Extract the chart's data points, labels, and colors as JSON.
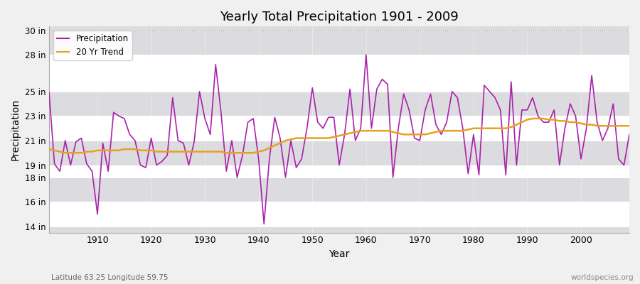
{
  "title": "Yearly Total Precipitation 1901 - 2009",
  "xlabel": "Year",
  "ylabel": "Precipitation",
  "footnote_left": "Latitude 63.25 Longitude 59.75",
  "footnote_right": "worldspecies.org",
  "ylim": [
    13.5,
    30.3
  ],
  "bg_color": "#f0f0f0",
  "plot_bg_color": "#dcdce0",
  "precip_color": "#aa22aa",
  "trend_color": "#e8a020",
  "grid_color": "#ffffff",
  "years": [
    1901,
    1902,
    1903,
    1904,
    1905,
    1906,
    1907,
    1908,
    1909,
    1910,
    1911,
    1912,
    1913,
    1914,
    1915,
    1916,
    1917,
    1918,
    1919,
    1920,
    1921,
    1922,
    1923,
    1924,
    1925,
    1926,
    1927,
    1928,
    1929,
    1930,
    1931,
    1932,
    1933,
    1934,
    1935,
    1936,
    1937,
    1938,
    1939,
    1940,
    1941,
    1942,
    1943,
    1944,
    1945,
    1946,
    1947,
    1948,
    1949,
    1950,
    1951,
    1952,
    1953,
    1954,
    1955,
    1956,
    1957,
    1958,
    1959,
    1960,
    1961,
    1962,
    1963,
    1964,
    1965,
    1966,
    1967,
    1968,
    1969,
    1970,
    1971,
    1972,
    1973,
    1974,
    1975,
    1976,
    1977,
    1978,
    1979,
    1980,
    1981,
    1982,
    1983,
    1984,
    1985,
    1986,
    1987,
    1988,
    1989,
    1990,
    1991,
    1992,
    1993,
    1994,
    1995,
    1996,
    1997,
    1998,
    1999,
    2000,
    2001,
    2002,
    2003,
    2004,
    2005,
    2006,
    2007,
    2008,
    2009
  ],
  "precip": [
    24.9,
    19.1,
    18.5,
    21.0,
    19.0,
    20.9,
    21.2,
    19.1,
    18.5,
    15.0,
    20.8,
    18.5,
    23.3,
    23.0,
    22.8,
    21.5,
    21.0,
    19.0,
    18.8,
    21.2,
    19.0,
    19.3,
    19.8,
    24.5,
    21.0,
    20.8,
    19.0,
    20.9,
    25.0,
    22.8,
    21.5,
    27.2,
    23.3,
    18.5,
    21.0,
    18.0,
    19.8,
    22.5,
    22.8,
    19.5,
    14.2,
    19.5,
    22.9,
    21.2,
    18.0,
    21.0,
    18.8,
    19.5,
    22.0,
    25.3,
    22.5,
    22.0,
    22.9,
    22.9,
    19.0,
    21.5,
    25.2,
    21.0,
    22.0,
    28.0,
    22.0,
    25.2,
    26.0,
    25.6,
    18.0,
    22.0,
    24.8,
    23.5,
    21.2,
    21.0,
    23.5,
    24.8,
    22.3,
    21.5,
    22.5,
    25.0,
    24.5,
    22.0,
    18.3,
    21.5,
    18.2,
    25.5,
    25.0,
    24.5,
    23.5,
    18.2,
    25.8,
    19.0,
    23.5,
    23.5,
    24.5,
    23.0,
    22.5,
    22.5,
    23.5,
    19.0,
    22.0,
    24.0,
    23.0,
    19.5,
    22.0,
    26.3,
    22.5,
    21.0,
    22.0,
    24.0,
    19.5,
    19.0,
    21.5
  ],
  "trend": [
    20.3,
    20.2,
    20.1,
    20.0,
    20.0,
    20.0,
    20.0,
    20.1,
    20.1,
    20.2,
    20.2,
    20.2,
    20.2,
    20.2,
    20.3,
    20.3,
    20.3,
    20.2,
    20.2,
    20.2,
    20.1,
    20.1,
    20.1,
    20.1,
    20.1,
    20.1,
    20.1,
    20.1,
    20.1,
    20.1,
    20.1,
    20.1,
    20.1,
    20.0,
    20.0,
    20.0,
    20.0,
    20.0,
    20.0,
    20.1,
    20.2,
    20.4,
    20.6,
    20.8,
    21.0,
    21.1,
    21.2,
    21.2,
    21.2,
    21.2,
    21.2,
    21.2,
    21.2,
    21.3,
    21.4,
    21.5,
    21.6,
    21.7,
    21.8,
    21.8,
    21.8,
    21.8,
    21.8,
    21.8,
    21.7,
    21.6,
    21.5,
    21.5,
    21.5,
    21.5,
    21.5,
    21.6,
    21.7,
    21.8,
    21.8,
    21.8,
    21.8,
    21.8,
    21.9,
    22.0,
    22.0,
    22.0,
    22.0,
    22.0,
    22.0,
    22.0,
    22.1,
    22.3,
    22.5,
    22.7,
    22.8,
    22.8,
    22.8,
    22.7,
    22.7,
    22.6,
    22.6,
    22.5,
    22.5,
    22.4,
    22.3,
    22.3,
    22.2,
    22.2,
    22.2,
    22.2,
    22.2,
    22.2,
    22.2
  ],
  "ytick_vals": [
    14,
    16,
    18,
    19,
    21,
    23,
    25,
    28,
    30
  ],
  "ytick_labels": [
    "14 in",
    "16 in",
    "18 in",
    "19 in",
    "21 in",
    "23 in",
    "25 in",
    "28 in",
    "30 in"
  ],
  "xtick_vals": [
    1910,
    1920,
    1930,
    1940,
    1950,
    1960,
    1970,
    1980,
    1990,
    2000
  ]
}
